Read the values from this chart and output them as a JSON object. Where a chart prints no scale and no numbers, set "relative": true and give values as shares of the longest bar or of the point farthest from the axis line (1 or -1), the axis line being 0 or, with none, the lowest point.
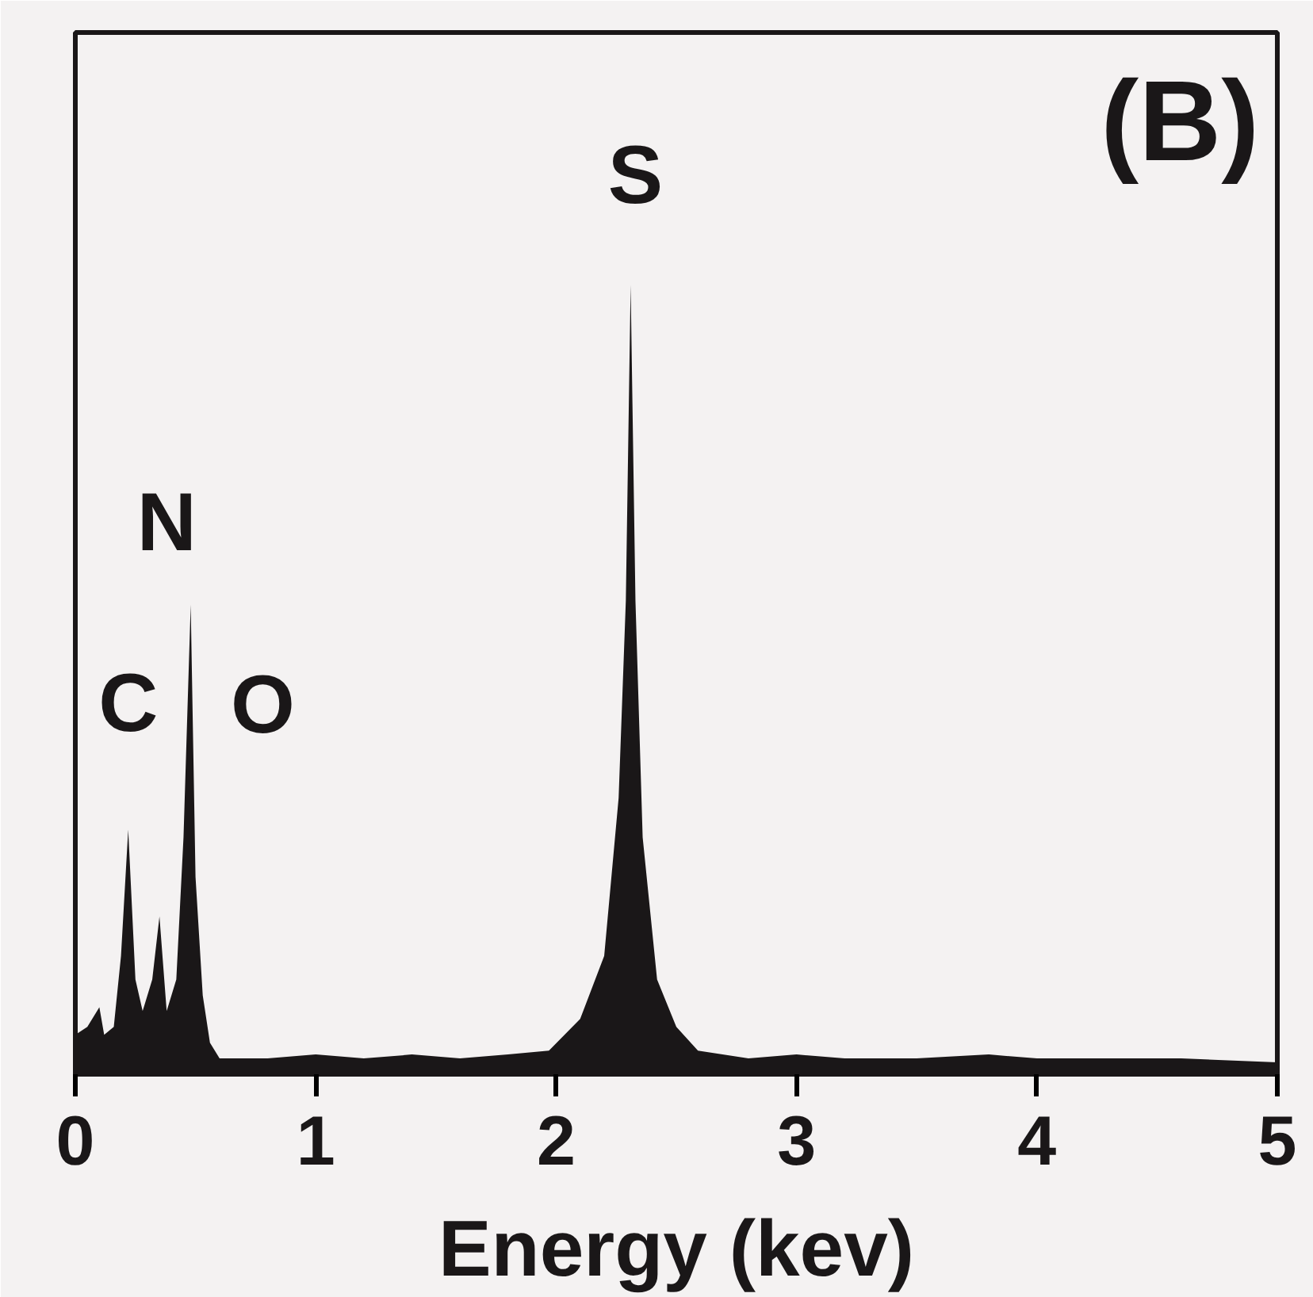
{
  "chart_data": {
    "type": "area",
    "relative": true,
    "xlabel": "Energy (kev)",
    "xlim": [
      0,
      5
    ],
    "xticks": [
      0,
      1,
      2,
      3,
      4,
      5
    ],
    "grid": false,
    "x": [
      0.0,
      0.05,
      0.1,
      0.12,
      0.16,
      0.19,
      0.22,
      0.25,
      0.28,
      0.32,
      0.35,
      0.38,
      0.42,
      0.45,
      0.48,
      0.5,
      0.53,
      0.56,
      0.6,
      0.8,
      1.0,
      1.2,
      1.4,
      1.6,
      1.8,
      1.97,
      2.1,
      2.2,
      2.26,
      2.29,
      2.31,
      2.33,
      2.36,
      2.42,
      2.5,
      2.59,
      2.8,
      3.0,
      3.2,
      3.5,
      3.8,
      4.0,
      4.3,
      4.6,
      5.0
    ],
    "series": [
      {
        "color": "#1a1718",
        "values": [
          0.05,
          0.06,
          0.085,
          0.05,
          0.06,
          0.15,
          0.31,
          0.12,
          0.08,
          0.12,
          0.2,
          0.08,
          0.12,
          0.3,
          0.595,
          0.25,
          0.1,
          0.04,
          0.02,
          0.02,
          0.025,
          0.02,
          0.025,
          0.02,
          0.025,
          0.03,
          0.07,
          0.15,
          0.35,
          0.6,
          1.0,
          0.6,
          0.3,
          0.12,
          0.06,
          0.03,
          0.02,
          0.025,
          0.02,
          0.02,
          0.025,
          0.02,
          0.02,
          0.02,
          0.015
        ]
      }
    ],
    "annotations": [
      {
        "text": "C",
        "x": 0.22,
        "y": 0.31
      },
      "N",
      "O",
      {
        "text": "S",
        "x": 2.33,
        "y": 1.0
      },
      "(B)"
    ]
  }
}
